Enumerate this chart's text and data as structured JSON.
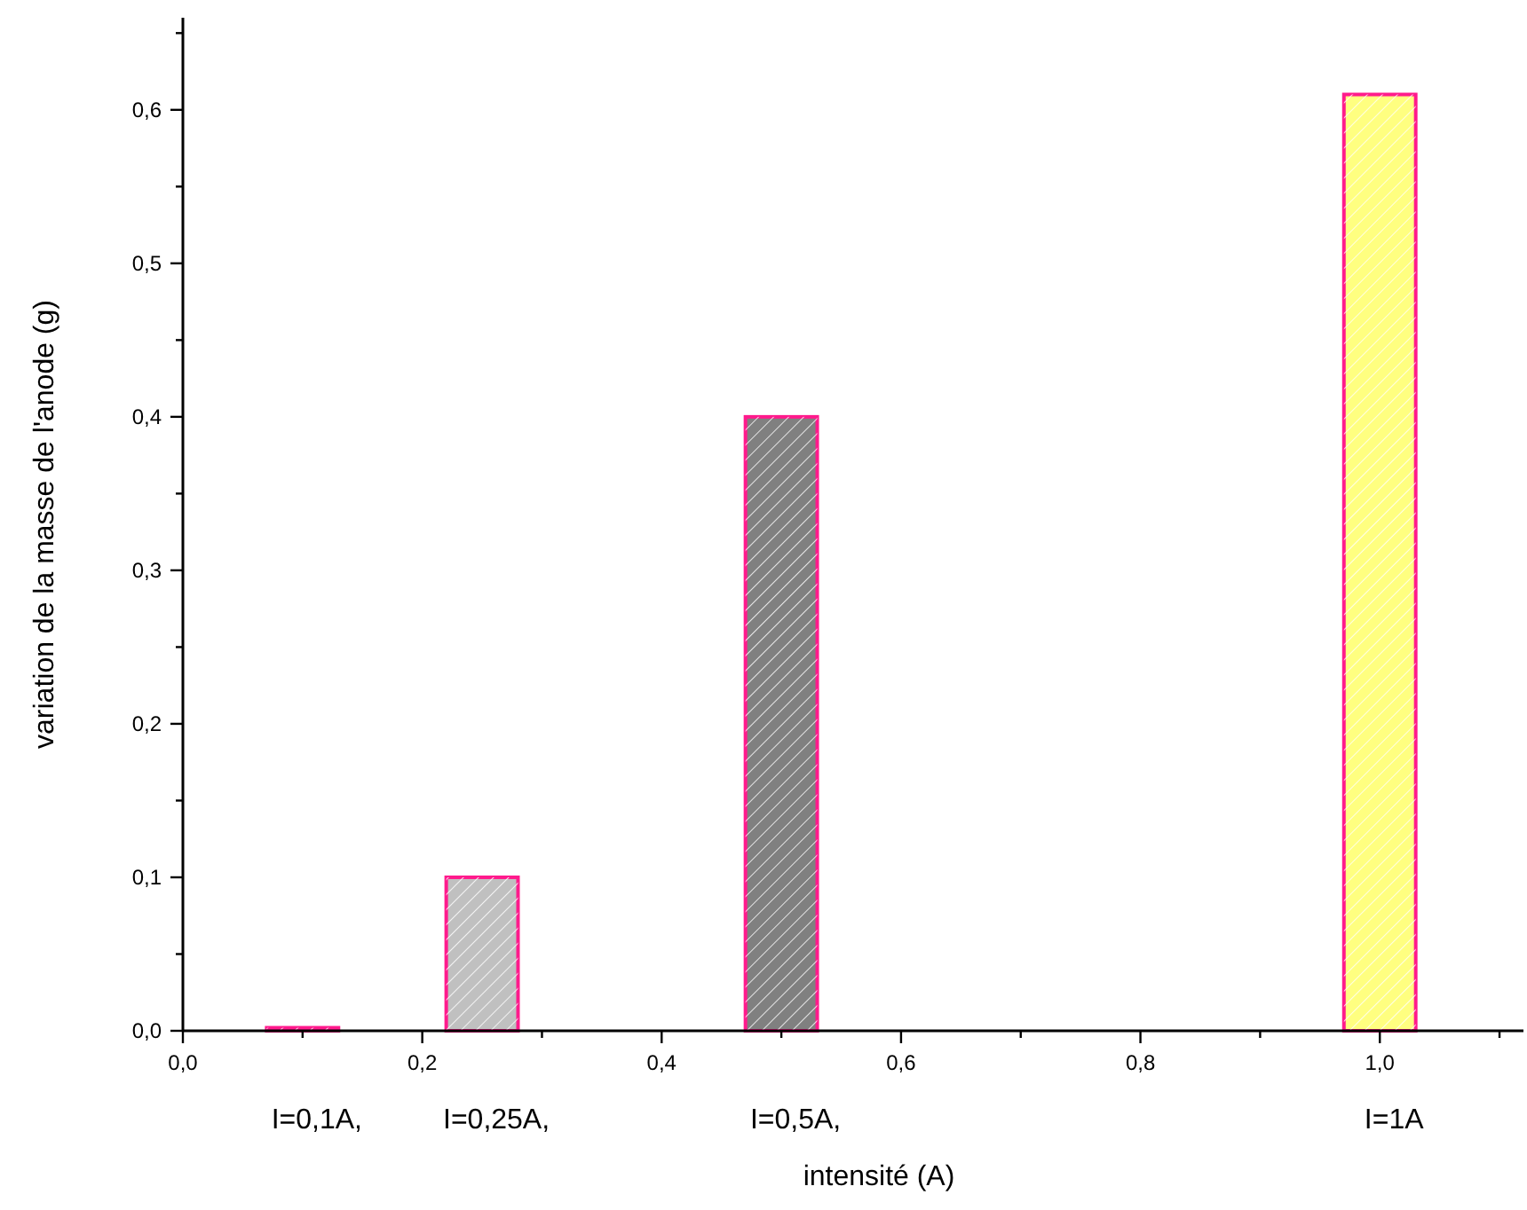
{
  "chart_data": {
    "type": "bar",
    "xlabel": "intensité (A)",
    "ylabel": "variation de la masse de l'anode (g)",
    "x": [
      0.1,
      0.25,
      0.5,
      1.0
    ],
    "values": [
      0.002,
      0.1,
      0.4,
      0.61
    ],
    "colors": [
      "#ff3399",
      "#c0c0c0",
      "#808080",
      "#ffff80"
    ],
    "xlim": [
      0,
      1.12
    ],
    "xticks": [
      {
        "value": 0,
        "label": "0,0"
      },
      {
        "value": 0.1,
        "label": null
      },
      {
        "value": 0.2,
        "label": "0,2"
      },
      {
        "value": 0.3,
        "label": null
      },
      {
        "value": 0.4,
        "label": "0,4"
      },
      {
        "value": 0.5,
        "label": null
      },
      {
        "value": 0.6,
        "label": "0,6"
      },
      {
        "value": 0.7,
        "label": null
      },
      {
        "value": 0.8,
        "label": "0,8"
      },
      {
        "value": 0.9,
        "label": null
      },
      {
        "value": 1.0,
        "label": "1,0"
      },
      {
        "value": 1.1,
        "label": null
      }
    ],
    "ylim": [
      0,
      0.66
    ],
    "yticks": [
      {
        "value": 0,
        "label": "0,0"
      },
      {
        "value": 0.05,
        "label": null
      },
      {
        "value": 0.1,
        "label": "0,1"
      },
      {
        "value": 0.15,
        "label": null
      },
      {
        "value": 0.2,
        "label": "0,2"
      },
      {
        "value": 0.25,
        "label": null
      },
      {
        "value": 0.3,
        "label": "0,3"
      },
      {
        "value": 0.35,
        "label": null
      },
      {
        "value": 0.4,
        "label": "0,4"
      },
      {
        "value": 0.45,
        "label": null
      },
      {
        "value": 0.5,
        "label": "0,5"
      },
      {
        "value": 0.55,
        "label": null
      },
      {
        "value": 0.6,
        "label": "0,6"
      },
      {
        "value": 0.65,
        "label": null
      }
    ],
    "annotations": [
      "I=0,1A,",
      "I=0,25A,",
      "I=0,5A,",
      "I=1A"
    ]
  }
}
